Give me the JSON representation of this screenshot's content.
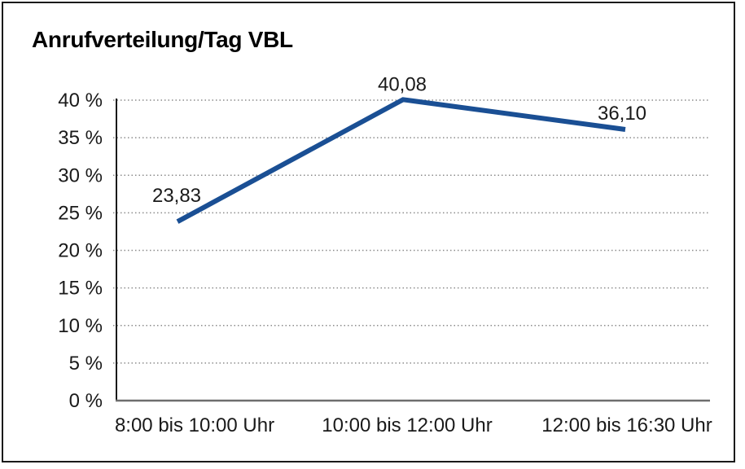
{
  "chart_data": {
    "type": "line",
    "title": "Anrufverteilung/Tag VBL",
    "categories": [
      "8:00 bis 10:00 Uhr",
      "10:00 bis 12:00 Uhr",
      "12:00 bis 16:30 Uhr"
    ],
    "series": [
      {
        "values": [
          23.83,
          40.08,
          36.1
        ],
        "data_labels": [
          "23,83",
          "40,08",
          "36,10"
        ]
      }
    ],
    "ylim": [
      0,
      40
    ],
    "yticks": [
      0,
      5,
      10,
      15,
      20,
      25,
      30,
      35,
      40
    ],
    "ytick_labels": [
      "0 %",
      "5 %",
      "10 %",
      "15 %",
      "20 %",
      "25 %",
      "30 %",
      "35 %",
      "40 %"
    ],
    "xlabel": "",
    "ylabel": "",
    "legend": "none",
    "grid": "horizontal-dotted",
    "colors": {
      "line": "#1a4f94",
      "gridline": "#8c8c8c",
      "y_axis": "#1a1a1a",
      "x_axis": "#6e6e6e",
      "text": "#1a1a1a",
      "background": "#ffffff",
      "border": "#1a1a1a"
    }
  }
}
